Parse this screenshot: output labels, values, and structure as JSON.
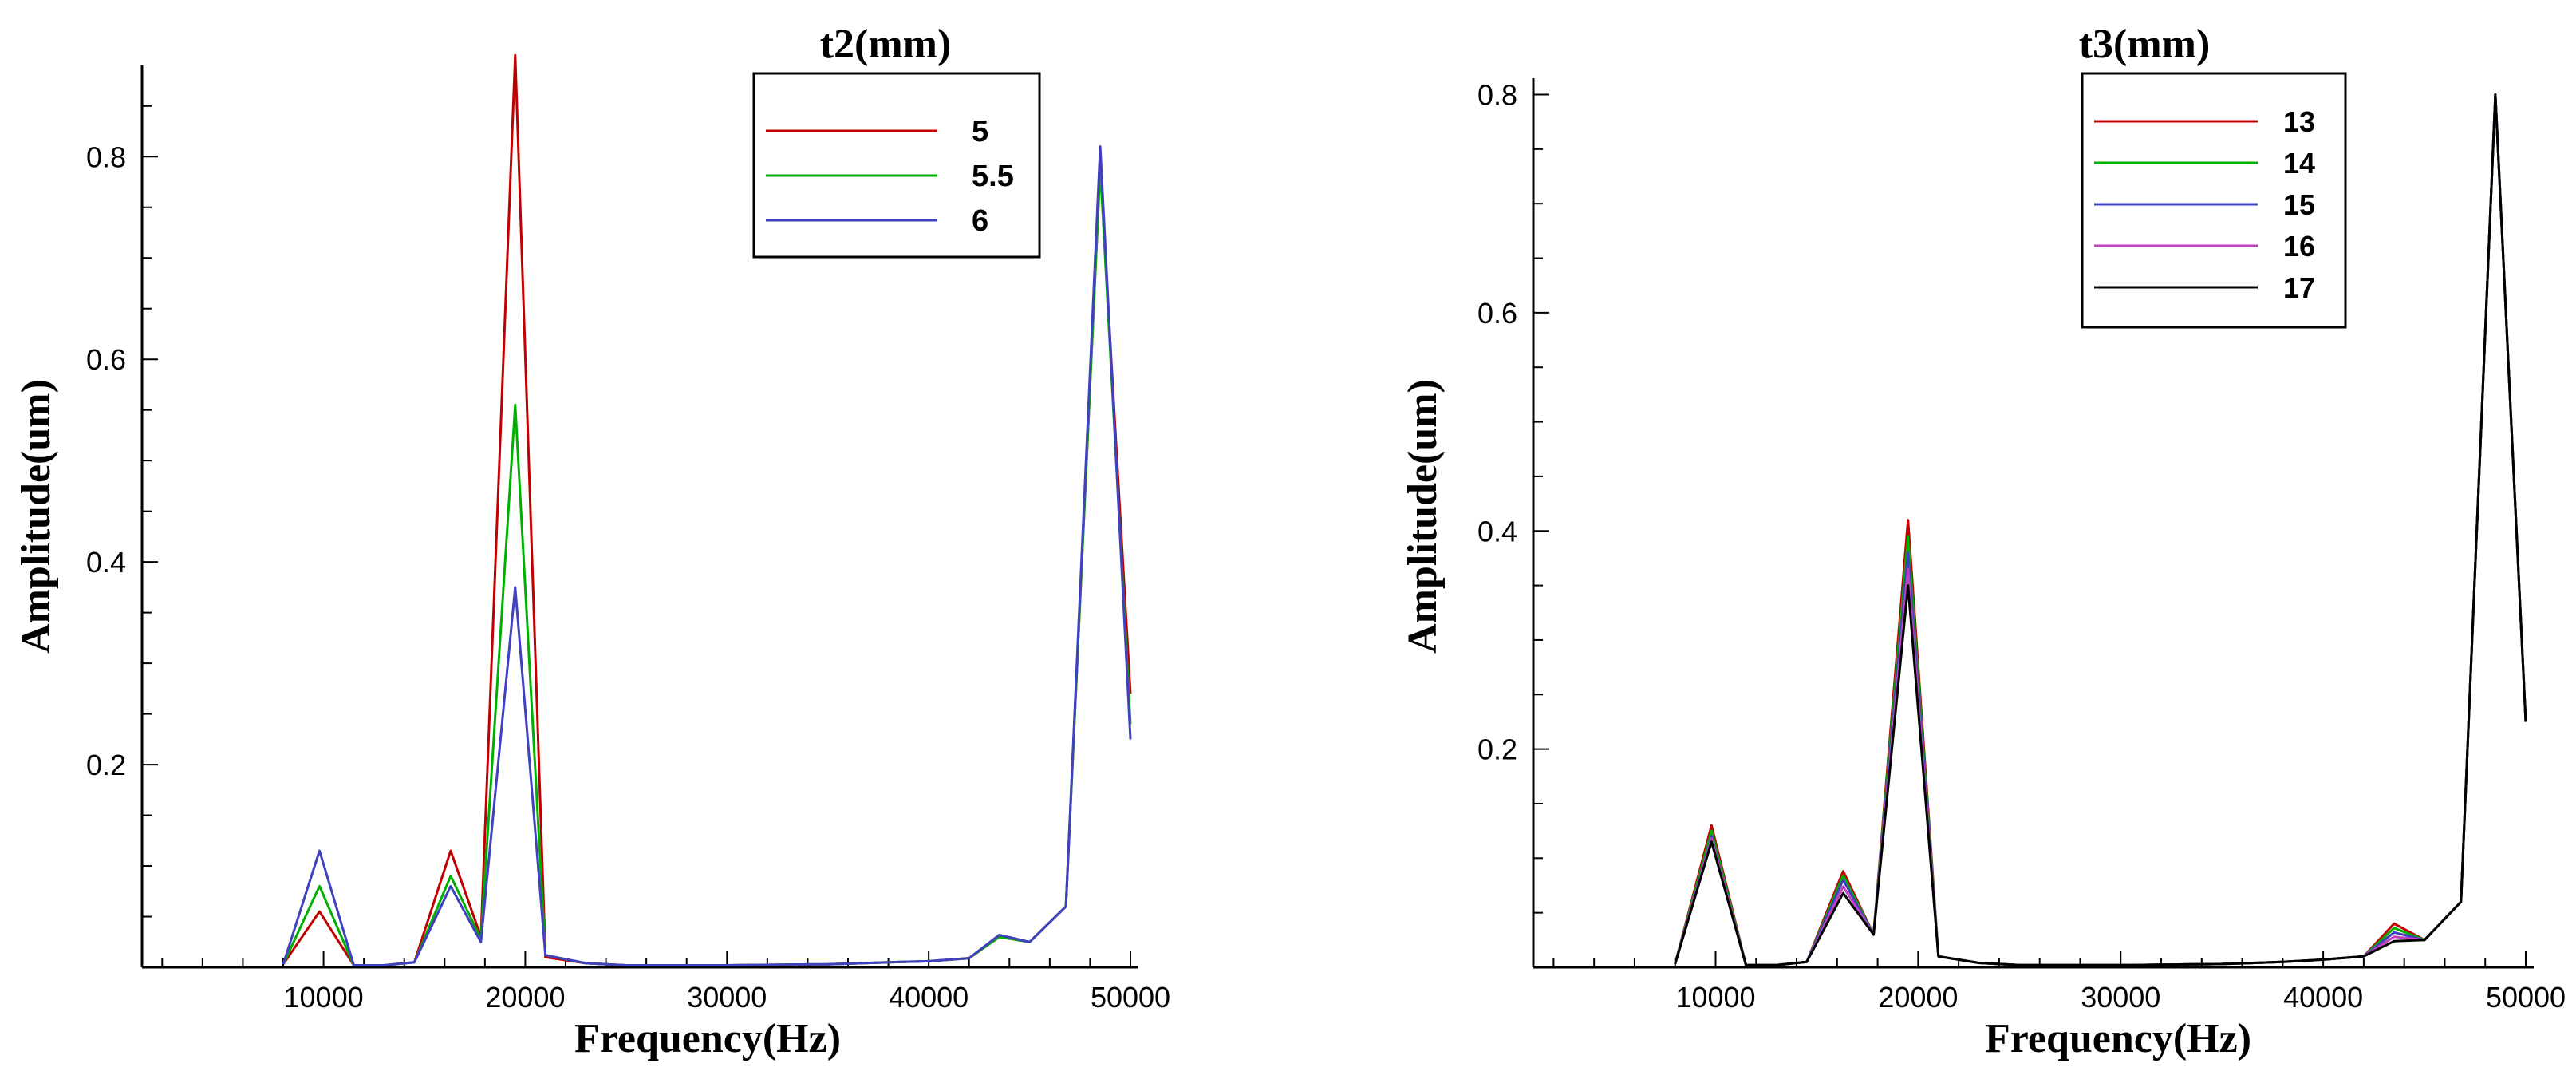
{
  "chart_data": [
    {
      "type": "line",
      "xlabel": "Frequency(Hz)",
      "ylabel": "Amplitude(um)",
      "xlim": [
        1000,
        50000
      ],
      "ylim": [
        0,
        0.89
      ],
      "x_ticks": [
        "10000",
        "20000",
        "30000",
        "40000",
        "50000"
      ],
      "y_ticks": [
        "0.2",
        "0.4",
        "0.6",
        "0.8"
      ],
      "grid": false,
      "legend": {
        "title": "t2(mm)",
        "placement": "top-right"
      },
      "x": [
        8000,
        9800,
        11500,
        13000,
        14500,
        16300,
        17800,
        19500,
        21000,
        23000,
        25000,
        30000,
        35000,
        38000,
        40000,
        42000,
        43500,
        45000,
        46800,
        48500,
        50000
      ],
      "series": [
        {
          "name": "5",
          "color": "#c00000",
          "values": [
            0.003,
            0.055,
            0.002,
            0.002,
            0.005,
            0.115,
            0.03,
            0.9,
            0.01,
            0.004,
            0.002,
            0.002,
            0.003,
            0.005,
            0.006,
            0.009,
            0.03,
            0.025,
            0.06,
            0.79,
            0.27
          ]
        },
        {
          "name": "5.5",
          "color": "#00b000",
          "values": [
            0.003,
            0.08,
            0.002,
            0.002,
            0.005,
            0.09,
            0.028,
            0.555,
            0.012,
            0.004,
            0.002,
            0.002,
            0.003,
            0.005,
            0.006,
            0.009,
            0.03,
            0.025,
            0.06,
            0.79,
            0.24
          ]
        },
        {
          "name": "6",
          "color": "#4040c0",
          "values": [
            0.003,
            0.115,
            0.002,
            0.002,
            0.005,
            0.08,
            0.025,
            0.375,
            0.012,
            0.004,
            0.002,
            0.002,
            0.003,
            0.005,
            0.006,
            0.009,
            0.032,
            0.025,
            0.06,
            0.81,
            0.225
          ]
        }
      ]
    },
    {
      "type": "line",
      "xlabel": "Frequency(Hz)",
      "ylabel": "Amplitude(um)",
      "xlim": [
        1000,
        50000
      ],
      "ylim": [
        0,
        0.815
      ],
      "x_ticks": [
        "10000",
        "20000",
        "30000",
        "40000",
        "50000"
      ],
      "y_ticks": [
        "0.2",
        "0.4",
        "0.6",
        "0.8"
      ],
      "grid": false,
      "legend": {
        "title": "t3(mm)",
        "placement": "top-center"
      },
      "x": [
        8000,
        9800,
        11500,
        13000,
        14500,
        16300,
        17800,
        19500,
        21000,
        23000,
        25000,
        30000,
        35000,
        38000,
        40000,
        42000,
        43500,
        45000,
        46800,
        48500,
        50000
      ],
      "series": [
        {
          "name": "13",
          "color": "#c00000",
          "values": [
            0.003,
            0.13,
            0.002,
            0.002,
            0.005,
            0.088,
            0.03,
            0.41,
            0.01,
            0.004,
            0.002,
            0.002,
            0.003,
            0.005,
            0.007,
            0.01,
            0.04,
            0.025,
            0.06,
            0.8,
            0.225
          ]
        },
        {
          "name": "14",
          "color": "#00b000",
          "values": [
            0.003,
            0.125,
            0.002,
            0.002,
            0.005,
            0.084,
            0.03,
            0.395,
            0.01,
            0.004,
            0.002,
            0.002,
            0.003,
            0.005,
            0.007,
            0.01,
            0.036,
            0.025,
            0.06,
            0.8,
            0.225
          ]
        },
        {
          "name": "15",
          "color": "#4040c0",
          "values": [
            0.003,
            0.12,
            0.002,
            0.002,
            0.005,
            0.08,
            0.03,
            0.38,
            0.01,
            0.004,
            0.002,
            0.002,
            0.003,
            0.005,
            0.007,
            0.01,
            0.032,
            0.025,
            0.06,
            0.8,
            0.225
          ]
        },
        {
          "name": "16",
          "color": "#c040c0",
          "values": [
            0.003,
            0.118,
            0.002,
            0.002,
            0.005,
            0.074,
            0.03,
            0.365,
            0.01,
            0.004,
            0.002,
            0.002,
            0.003,
            0.005,
            0.007,
            0.01,
            0.028,
            0.025,
            0.06,
            0.8,
            0.225
          ]
        },
        {
          "name": "17",
          "color": "#000000",
          "values": [
            0.003,
            0.115,
            0.002,
            0.002,
            0.005,
            0.068,
            0.03,
            0.35,
            0.01,
            0.004,
            0.002,
            0.002,
            0.003,
            0.005,
            0.007,
            0.01,
            0.024,
            0.025,
            0.06,
            0.8,
            0.225
          ]
        }
      ]
    }
  ]
}
